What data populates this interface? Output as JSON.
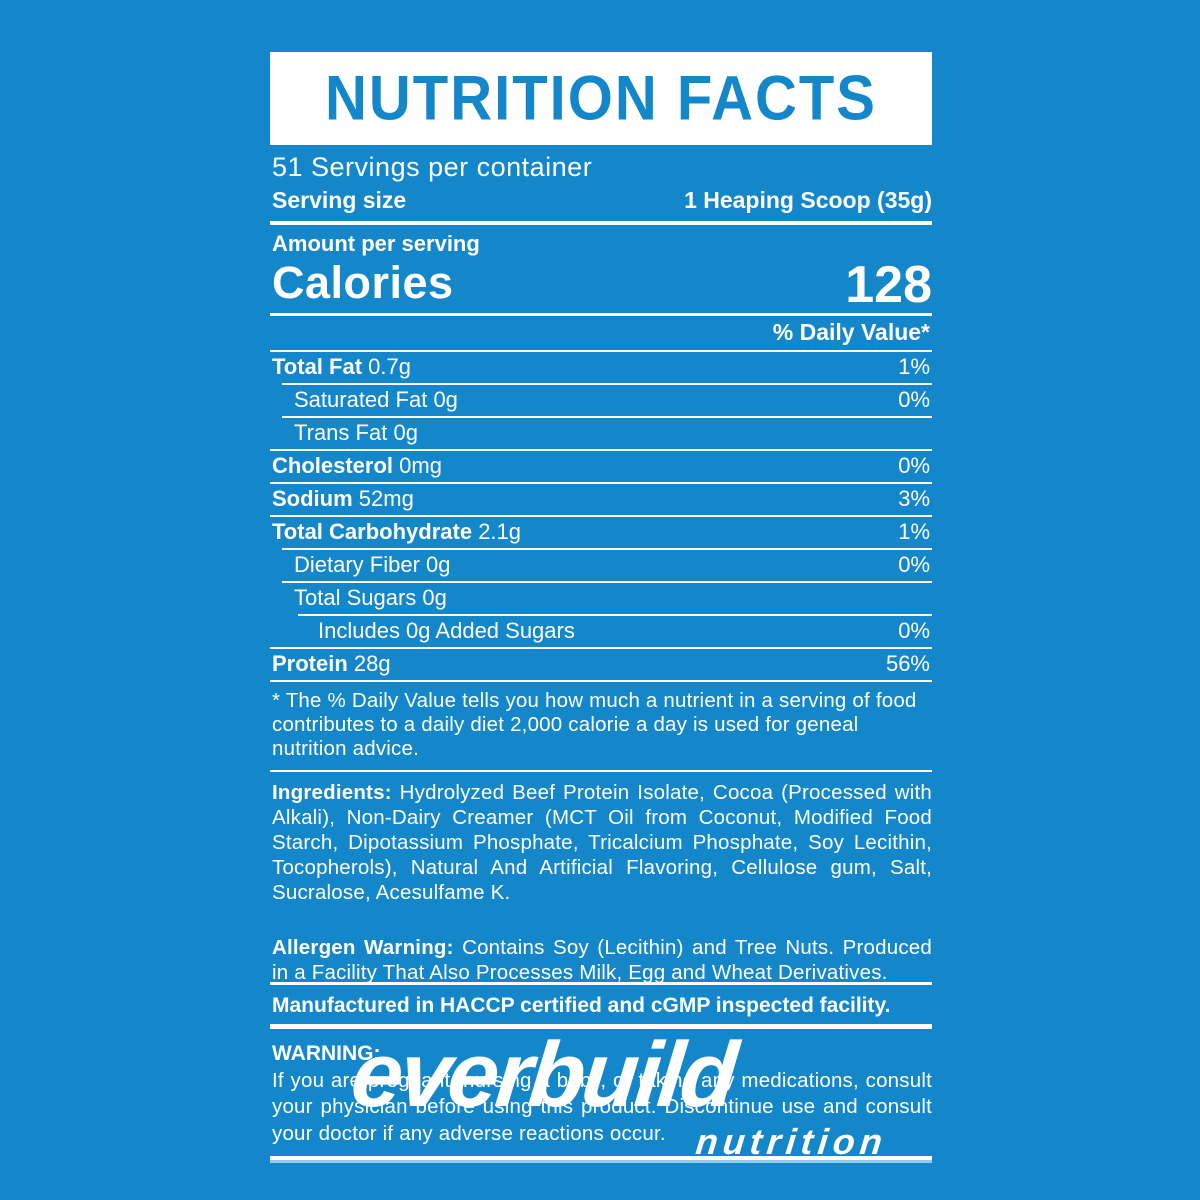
{
  "colors": {
    "background": "#1487cb",
    "accent_blue": "#1487cb",
    "text_white": "#ffffff"
  },
  "header": {
    "title": "NUTRITION FACTS"
  },
  "servings": {
    "per_container": "51 Servings per container",
    "serving_size_label": "Serving size",
    "serving_size_value": "1 Heaping Scoop (35g)"
  },
  "calories": {
    "amount_label": "Amount per serving",
    "label": "Calories",
    "value": "128"
  },
  "daily_value_header": "% Daily Value*",
  "nutrients": [
    {
      "label": "Total Fat",
      "amount": "0.7g",
      "dv": "1%"
    },
    {
      "label": "Saturated Fat",
      "amount": "0g",
      "dv": "0%"
    },
    {
      "label": "Trans Fat",
      "amount": "0g",
      "dv": ""
    },
    {
      "label": "Cholesterol",
      "amount": "0mg",
      "dv": "0%"
    },
    {
      "label": "Sodium",
      "amount": "52mg",
      "dv": "3%"
    },
    {
      "label": "Total Carbohydrate",
      "amount": "2.1g",
      "dv": "1%"
    },
    {
      "label": "Dietary Fiber",
      "amount": "0g",
      "dv": "0%"
    },
    {
      "label": "Total Sugars",
      "amount": "0g",
      "dv": ""
    },
    {
      "label": "Includes 0g Added Sugars",
      "amount": "",
      "dv": "0%"
    },
    {
      "label": "Protein",
      "amount": "28g",
      "dv": "56%"
    }
  ],
  "footnote": "* The % Daily Value tells you how much a nutrient in a serving of food contributes to a daily diet 2,000 calorie a day is used for geneal nutrition advice.",
  "ingredients": {
    "label": "Ingredients:",
    "text": " Hydrolyzed Beef Protein Isolate, Cocoa (Processed with Alkali), Non-Dairy Creamer (MCT Oil from Coconut, Modified Food Starch, Dipotassium Phosphate, Tricalcium Phosphate, Soy Lecithin, Tocopherols), Natural And Artificial Flavoring, Cellulose gum, Salt, Sucralose, Acesulfame K."
  },
  "allergen": {
    "label": "Allergen Warning:",
    "text": " Contains Soy (Lecithin) and Tree Nuts. Produced in a Facility That Also Processes Milk, Egg and Wheat Derivatives."
  },
  "manufactured": "Manufactured in HACCP certified and cGMP inspected facility.",
  "warning": {
    "label": "WARNING:",
    "text": "If you are pregnant, nursing a baby, or taking any medications, consult your physician before using this product. Discontinue use and consult your doctor if any adverse reactions occur."
  },
  "logo": {
    "primary": "everbuild",
    "secondary": "nutrition"
  }
}
